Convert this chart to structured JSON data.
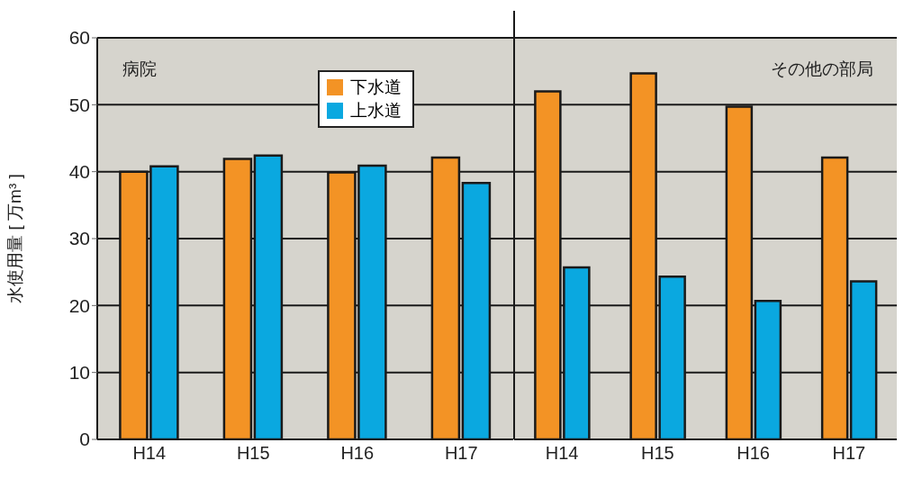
{
  "chart_data": [
    {
      "type": "bar",
      "ylabel": "水使用量 [ 万m³ ]",
      "categories": [
        "H14",
        "H15",
        "H16",
        "H17"
      ],
      "annotations": [
        "病院"
      ],
      "ylim": [
        0,
        60
      ],
      "yticks": [
        0,
        10,
        20,
        30,
        40,
        50,
        60
      ],
      "grid": "y",
      "legend": "top",
      "series": [
        {
          "name": "下水道",
          "color": "#f39325",
          "values": [
            40.0,
            41.9,
            39.9,
            42.1
          ]
        },
        {
          "name": "上水道",
          "color": "#0aa8e0",
          "values": [
            40.8,
            42.4,
            40.9,
            38.3
          ]
        }
      ]
    },
    {
      "type": "bar",
      "categories": [
        "H14",
        "H15",
        "H16",
        "H17"
      ],
      "annotations": [
        "その他の部局"
      ],
      "ylim": [
        0,
        60
      ],
      "yticks": [
        0,
        10,
        20,
        30,
        40,
        50,
        60
      ],
      "grid": "y",
      "tick_labels": "x",
      "series": [
        {
          "color": "#f39325",
          "values": [
            52.0,
            54.7,
            49.7,
            42.1
          ]
        },
        {
          "color": "#0aa8e0",
          "values": [
            25.7,
            24.3,
            20.7,
            23.6
          ]
        }
      ]
    }
  ]
}
